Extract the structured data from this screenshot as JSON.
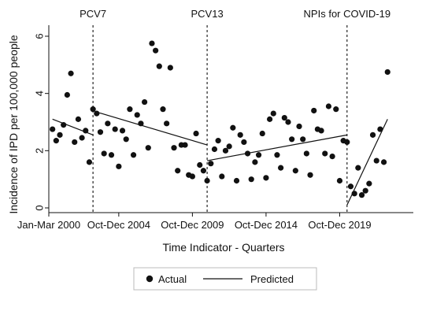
{
  "chart_data": {
    "type": "scatter",
    "xlabel": "Time Indicator - Quarters",
    "ylabel": "Incidence of IPD per 100,000 people",
    "xlim": [
      0,
      99
    ],
    "ylim": [
      0,
      6
    ],
    "y_ticks": [
      0,
      2,
      4,
      6
    ],
    "x_ticks": [
      {
        "x": 0,
        "label": "Jan-Mar 2000"
      },
      {
        "x": 19,
        "label": "Oct-Dec 2004"
      },
      {
        "x": 39,
        "label": "Oct-Dec 2009"
      },
      {
        "x": 59,
        "label": "Oct-Dec 2014"
      },
      {
        "x": 79,
        "label": "Oct-Dec 2019"
      }
    ],
    "events": [
      {
        "x": 12,
        "label": "PCV7"
      },
      {
        "x": 43,
        "label": "PCV13"
      },
      {
        "x": 81,
        "label": "NPIs for COVID-19"
      }
    ],
    "legend": [
      {
        "label": "Actual",
        "marker": "dot"
      },
      {
        "label": "Predicted",
        "marker": "line"
      }
    ],
    "legend_position": "bottom",
    "series": [
      {
        "name": "Actual",
        "points": [
          [
            1,
            2.75
          ],
          [
            2,
            2.35
          ],
          [
            3,
            2.55
          ],
          [
            4,
            2.9
          ],
          [
            5,
            3.95
          ],
          [
            6,
            4.7
          ],
          [
            7,
            2.3
          ],
          [
            8,
            3.1
          ],
          [
            9,
            2.45
          ],
          [
            10,
            2.7
          ],
          [
            11,
            1.6
          ],
          [
            12,
            3.45
          ],
          [
            13,
            3.3
          ],
          [
            14,
            2.65
          ],
          [
            15,
            1.9
          ],
          [
            16,
            2.95
          ],
          [
            17,
            1.85
          ],
          [
            18,
            2.75
          ],
          [
            19,
            1.45
          ],
          [
            20,
            2.7
          ],
          [
            21,
            2.4
          ],
          [
            22,
            3.45
          ],
          [
            23,
            1.85
          ],
          [
            24,
            3.25
          ],
          [
            25,
            2.95
          ],
          [
            26,
            3.7
          ],
          [
            27,
            2.1
          ],
          [
            28,
            5.75
          ],
          [
            29,
            5.5
          ],
          [
            30,
            4.95
          ],
          [
            31,
            3.45
          ],
          [
            32,
            2.95
          ],
          [
            33,
            4.9
          ],
          [
            34,
            2.1
          ],
          [
            35,
            1.3
          ],
          [
            36,
            2.2
          ],
          [
            37,
            2.2
          ],
          [
            38,
            1.15
          ],
          [
            39,
            1.1
          ],
          [
            40,
            2.6
          ],
          [
            41,
            1.5
          ],
          [
            42,
            1.3
          ],
          [
            43,
            0.95
          ],
          [
            44,
            1.55
          ],
          [
            45,
            2.05
          ],
          [
            46,
            2.35
          ],
          [
            47,
            1.1
          ],
          [
            48,
            2.0
          ],
          [
            49,
            2.15
          ],
          [
            50,
            2.8
          ],
          [
            51,
            0.95
          ],
          [
            52,
            2.55
          ],
          [
            53,
            2.3
          ],
          [
            54,
            1.9
          ],
          [
            55,
            1.0
          ],
          [
            56,
            1.6
          ],
          [
            57,
            1.85
          ],
          [
            58,
            2.6
          ],
          [
            59,
            1.05
          ],
          [
            60,
            3.1
          ],
          [
            61,
            3.3
          ],
          [
            62,
            1.85
          ],
          [
            63,
            1.4
          ],
          [
            64,
            3.15
          ],
          [
            65,
            3.0
          ],
          [
            66,
            2.4
          ],
          [
            67,
            1.3
          ],
          [
            68,
            2.85
          ],
          [
            69,
            2.4
          ],
          [
            70,
            1.9
          ],
          [
            71,
            1.15
          ],
          [
            72,
            3.4
          ],
          [
            73,
            2.75
          ],
          [
            74,
            2.7
          ],
          [
            75,
            1.9
          ],
          [
            76,
            3.55
          ],
          [
            77,
            1.8
          ],
          [
            78,
            3.45
          ],
          [
            79,
            0.95
          ],
          [
            80,
            2.35
          ],
          [
            81,
            2.3
          ],
          [
            82,
            0.75
          ],
          [
            83,
            0.5
          ],
          [
            84,
            1.4
          ],
          [
            85,
            0.45
          ],
          [
            86,
            0.6
          ],
          [
            87,
            0.85
          ],
          [
            88,
            2.55
          ],
          [
            89,
            1.65
          ],
          [
            90,
            2.75
          ],
          [
            91,
            1.6
          ],
          [
            92,
            4.75
          ]
        ]
      },
      {
        "name": "Predicted",
        "segments": [
          [
            [
              1,
              3.1
            ],
            [
              12,
              2.55
            ]
          ],
          [
            [
              13,
              3.35
            ],
            [
              43,
              2.2
            ]
          ],
          [
            [
              43,
              1.65
            ],
            [
              81,
              2.55
            ]
          ],
          [
            [
              81,
              0.1
            ],
            [
              92,
              3.1
            ]
          ]
        ]
      }
    ]
  }
}
